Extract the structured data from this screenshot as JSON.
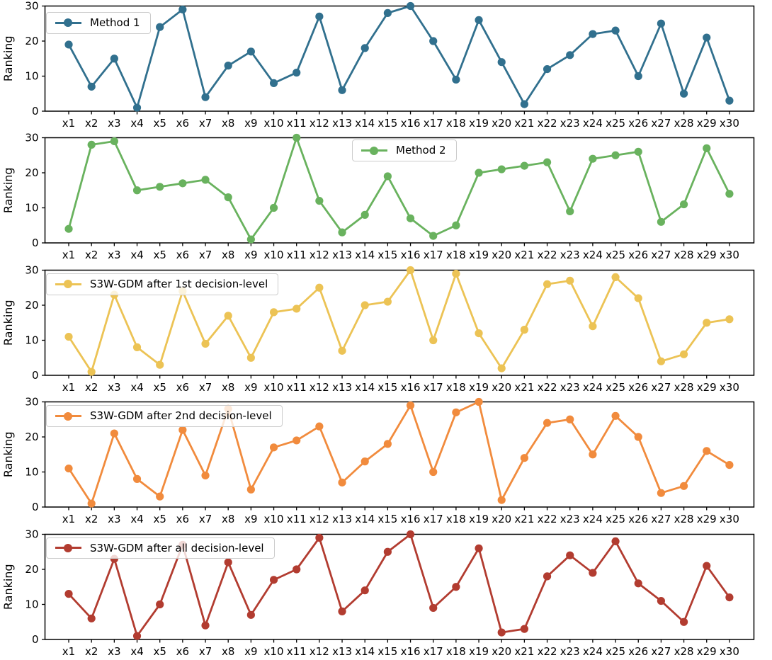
{
  "chart_data": {
    "type": "line",
    "layout": "5 vertically stacked subplots sharing the same x categories, legend inside each panel, no grid",
    "categories": [
      "x1",
      "x2",
      "x3",
      "x4",
      "x5",
      "x6",
      "x7",
      "x8",
      "x9",
      "x10",
      "x11",
      "x12",
      "x13",
      "x14",
      "x15",
      "x16",
      "x17",
      "x18",
      "x19",
      "x20",
      "x21",
      "x22",
      "x23",
      "x24",
      "x25",
      "x26",
      "x27",
      "x28",
      "x29",
      "x30"
    ],
    "ylabel": "Ranking",
    "ylim": [
      0,
      30
    ],
    "yticks": [
      0,
      10,
      20,
      30
    ],
    "marker": "circle",
    "series": [
      {
        "legend": "Method 1",
        "color": "#31708e",
        "legend_position": "upper left",
        "values": [
          19,
          7,
          15,
          1,
          24,
          29,
          4,
          13,
          17,
          8,
          11,
          27,
          6,
          18,
          28,
          30,
          20,
          9,
          26,
          14,
          2,
          12,
          16,
          22,
          23,
          10,
          25,
          5,
          21,
          3
        ]
      },
      {
        "legend": "Method 2",
        "color": "#69b25e",
        "legend_position": "upper center-right",
        "values": [
          4,
          28,
          29,
          15,
          16,
          17,
          18,
          13,
          1,
          10,
          30,
          12,
          3,
          8,
          19,
          7,
          2,
          5,
          20,
          21,
          22,
          23,
          9,
          24,
          25,
          26,
          6,
          11,
          27,
          14
        ]
      },
      {
        "legend": "S3W-GDM after 1st decision-level",
        "color": "#ecc355",
        "legend_position": "upper left",
        "values": [
          11,
          1,
          23,
          8,
          3,
          24,
          9,
          17,
          5,
          18,
          19,
          25,
          7,
          20,
          21,
          30,
          10,
          29,
          12,
          2,
          13,
          26,
          27,
          14,
          28,
          22,
          4,
          6,
          15,
          16
        ]
      },
      {
        "legend": "S3W-GDM after 2nd decision-level",
        "color": "#f18b3d",
        "legend_position": "upper left",
        "values": [
          11,
          1,
          21,
          8,
          3,
          22,
          9,
          28,
          5,
          17,
          19,
          23,
          7,
          13,
          18,
          29,
          10,
          27,
          30,
          2,
          14,
          24,
          25,
          15,
          26,
          20,
          4,
          6,
          16,
          12
        ]
      },
      {
        "legend": "S3W-GDM after all decision-level",
        "color": "#b23c30",
        "legend_position": "upper left",
        "values": [
          13,
          6,
          23,
          1,
          10,
          27,
          4,
          22,
          7,
          17,
          20,
          29,
          8,
          14,
          25,
          30,
          9,
          15,
          26,
          2,
          3,
          18,
          24,
          19,
          28,
          16,
          11,
          5,
          21,
          12
        ]
      }
    ]
  }
}
